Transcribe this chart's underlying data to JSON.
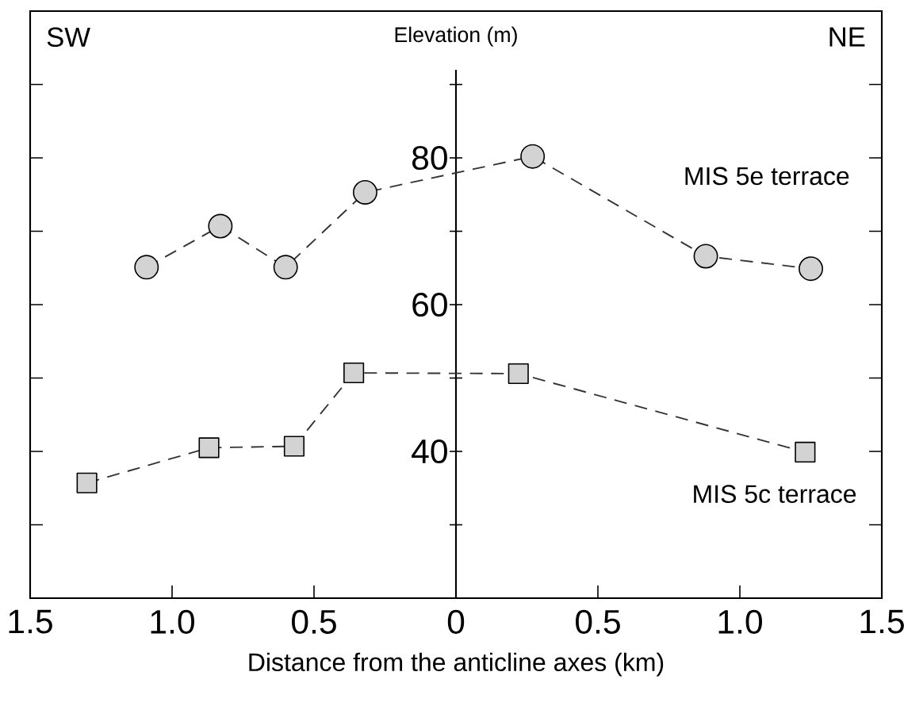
{
  "chart_data": {
    "type": "line",
    "xlabel": "Distance from the anticline axes (km)",
    "ylabel": "Elevation (m)",
    "annotations": [
      "SW",
      "NE"
    ],
    "series": [
      {
        "name": "MIS 5e terrace",
        "color": "#d3d3d3",
        "marker": "circle",
        "x": [
          -1.09,
          -0.83,
          -0.6,
          -0.32,
          0.27,
          0.88,
          1.25
        ],
        "values": [
          65.1,
          70.7,
          65.1,
          75.3,
          80.2,
          66.6,
          64.9
        ]
      },
      {
        "name": "MIS 5c terrace",
        "color": "#d3d3d3",
        "marker": "square",
        "x": [
          -1.3,
          -0.87,
          -0.57,
          -0.36,
          0.22,
          1.23
        ],
        "values": [
          35.7,
          40.5,
          40.7,
          50.7,
          50.6,
          39.9
        ]
      }
    ],
    "line_style": "dashed",
    "xlim": [
      -1.5,
      1.5
    ],
    "ylim": [
      20,
      100
    ],
    "xticks": [
      {
        "value": -1.5,
        "label": "1.5"
      },
      {
        "value": -1,
        "label": "1.0"
      },
      {
        "value": -0.5,
        "label": "0.5"
      },
      0,
      0.5,
      {
        "value": 1,
        "label": "1.0"
      },
      1.5
    ],
    "yticks": [
      {
        "value": 30,
        "label": null
      },
      40,
      {
        "value": 50,
        "label": null
      },
      60,
      {
        "value": 70,
        "label": null
      },
      80,
      {
        "value": 90,
        "label": null
      }
    ],
    "grid": false
  }
}
